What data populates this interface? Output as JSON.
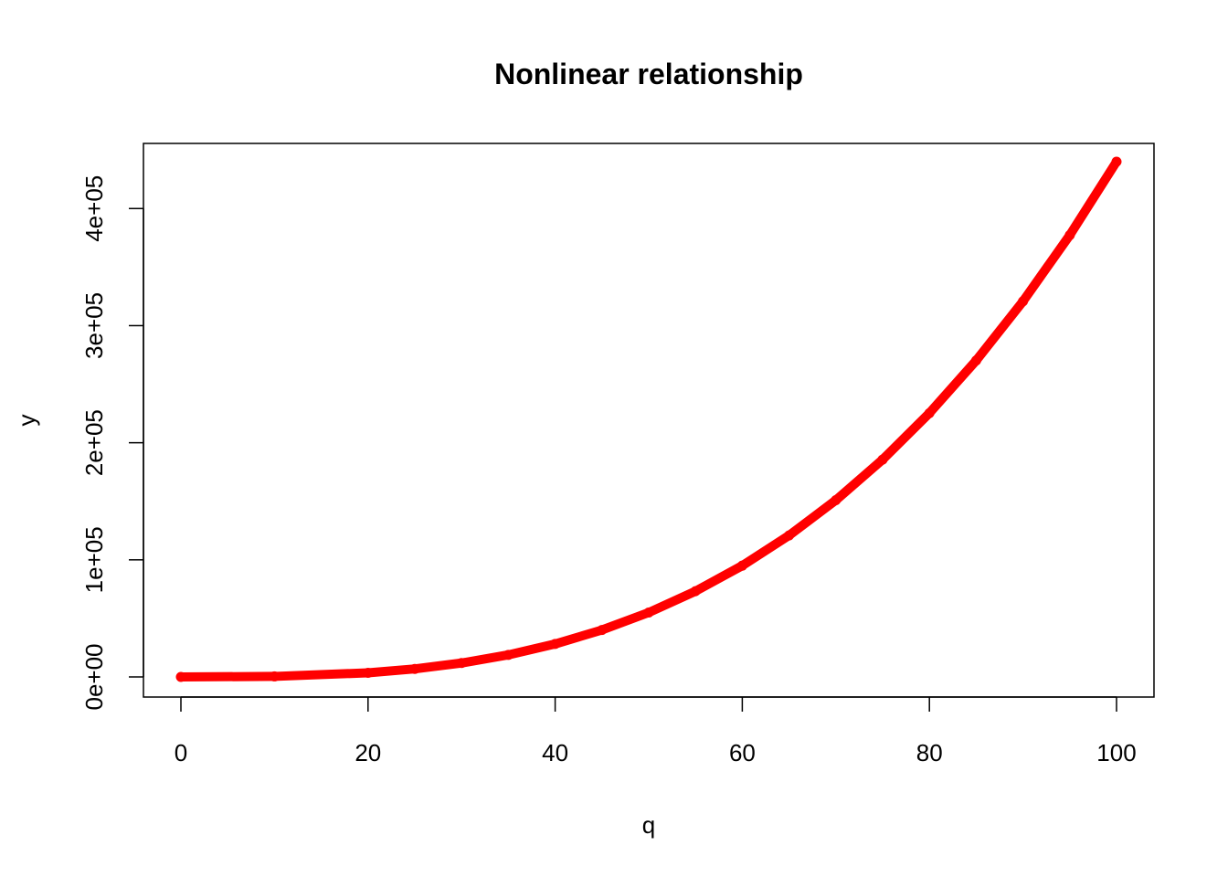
{
  "chart_data": {
    "type": "scatter",
    "title": "Nonlinear relationship",
    "xlabel": "q",
    "ylabel": "y",
    "xlim": [
      0,
      100
    ],
    "ylim": [
      0,
      440000
    ],
    "xticks": [
      0,
      20,
      40,
      60,
      80,
      100
    ],
    "xtick_labels": [
      "0",
      "20",
      "40",
      "60",
      "80",
      "100"
    ],
    "yticks": [
      0,
      100000,
      200000,
      300000,
      400000
    ],
    "ytick_labels": [
      "0e+00",
      "1e+05",
      "2e+05",
      "3e+05",
      "4e+05"
    ],
    "grid": false,
    "legend": "none",
    "series": [
      {
        "color": "#ff0000",
        "x": [
          0,
          10,
          20,
          25,
          30,
          35,
          40,
          45,
          50,
          55,
          60,
          65,
          70,
          75,
          80,
          85,
          90,
          95,
          100
        ],
        "y": [
          0,
          440,
          3520,
          6875,
          11880,
          18865,
          28160,
          40095,
          55000,
          73205,
          95040,
          120835,
          150920,
          185625,
          225280,
          270215,
          320760,
          377245,
          440000
        ]
      }
    ]
  }
}
